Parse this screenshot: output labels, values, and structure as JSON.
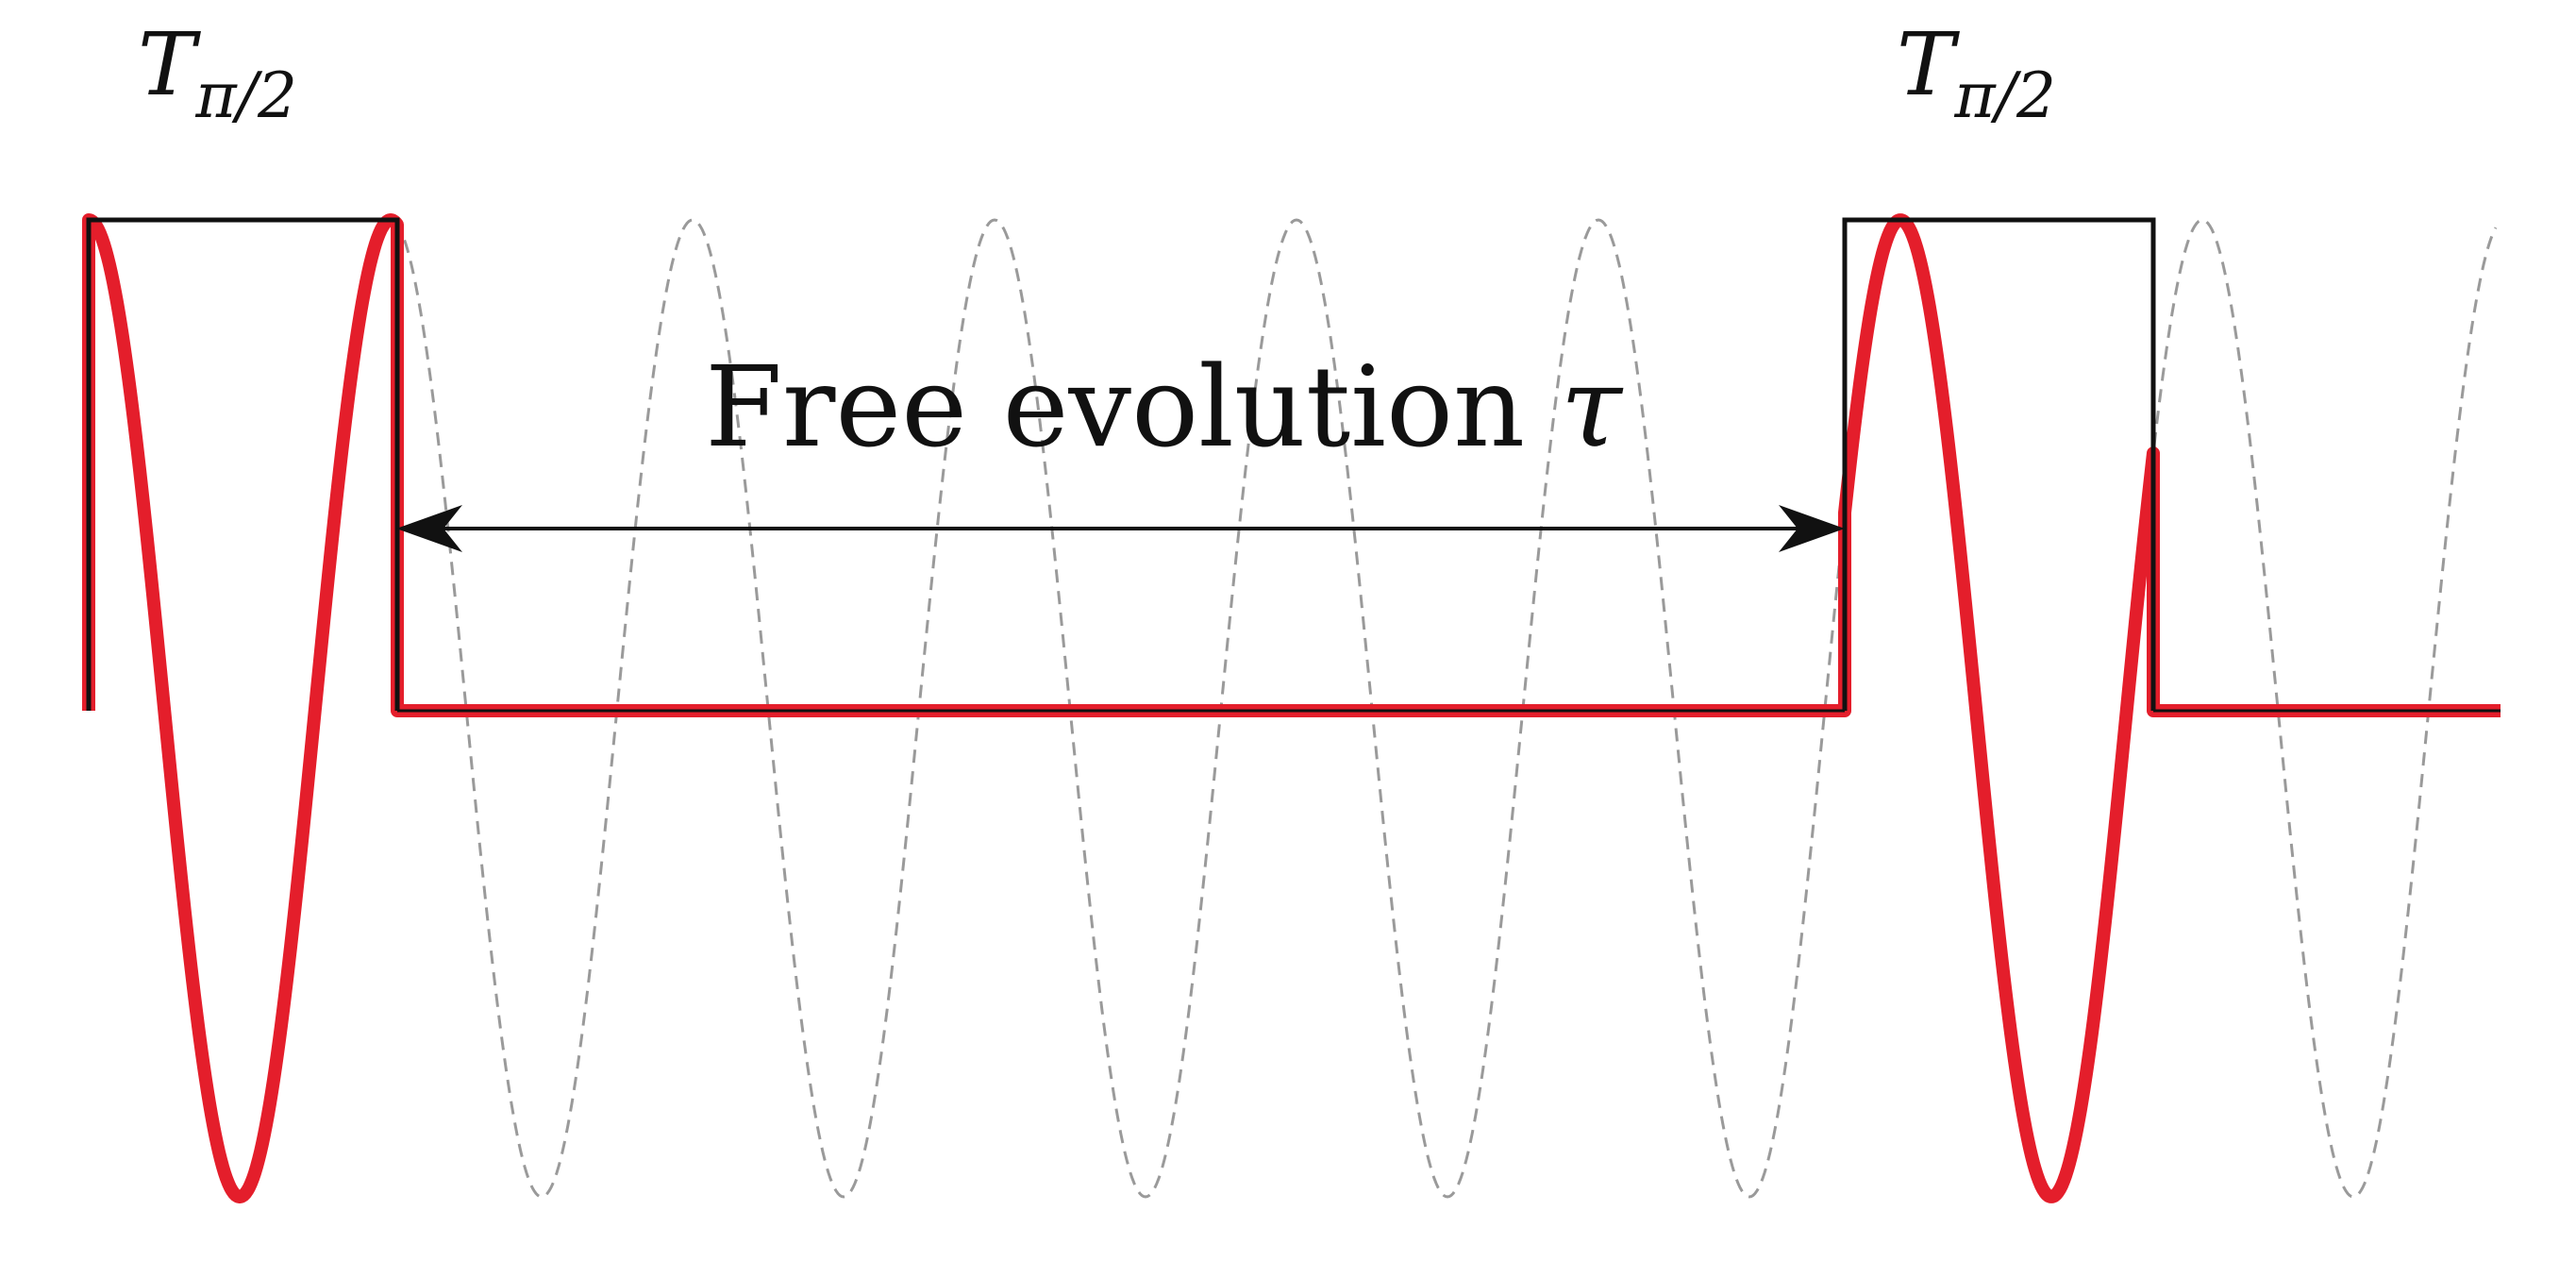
{
  "pulses": [
    {
      "symbol": "T",
      "subscript": "π/2"
    },
    {
      "symbol": "T",
      "subscript": "π/2"
    }
  ],
  "free_evolution": {
    "text": "Free evolution ",
    "symbol": "τ"
  },
  "colors": {
    "pulse_outline": "#111111",
    "driven_signal": "#e41e2b",
    "reference_wave": "#9a9a9a",
    "arrow": "#111111"
  }
}
